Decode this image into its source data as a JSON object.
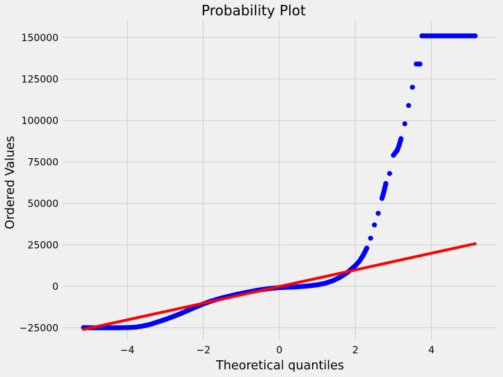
{
  "chart_data": {
    "type": "scatter",
    "title": "Probability Plot",
    "xlabel": "Theoretical quantiles",
    "ylabel": "Ordered Values",
    "xlim": [
      -5.7,
      5.7
    ],
    "ylim": [
      -32000,
      160000
    ],
    "xticks": [
      -4,
      -2,
      0,
      2,
      4
    ],
    "xtick_labels": [
      "−4",
      "−2",
      "0",
      "2",
      "4"
    ],
    "yticks": [
      -25000,
      0,
      25000,
      50000,
      75000,
      100000,
      125000,
      150000
    ],
    "ytick_labels": [
      "−25000",
      "0",
      "25000",
      "50000",
      "75000",
      "100000",
      "125000",
      "150000"
    ],
    "grid": true,
    "marker_color": "#0000ff",
    "line_color": "#ff0000",
    "background_color": "#f0f0f0",
    "series": [
      {
        "kind": "points",
        "points": [
          [
            -5.15,
            -24900
          ],
          [
            -4.9,
            -25000
          ],
          [
            -4.6,
            -25000
          ],
          [
            -4.3,
            -25000
          ],
          [
            -4.0,
            -24900
          ],
          [
            -3.8,
            -24700
          ],
          [
            -3.6,
            -24000
          ],
          [
            -3.4,
            -23000
          ],
          [
            -3.2,
            -21500
          ],
          [
            -3.0,
            -20000
          ],
          [
            -2.8,
            -18300
          ],
          [
            -2.6,
            -16500
          ],
          [
            -2.4,
            -14500
          ],
          [
            -2.2,
            -12500
          ],
          [
            -2.0,
            -10600
          ],
          [
            -1.8,
            -9000
          ],
          [
            -1.6,
            -7600
          ],
          [
            -1.4,
            -6400
          ],
          [
            -1.2,
            -5300
          ],
          [
            -1.0,
            -4300
          ],
          [
            -0.8,
            -3400
          ],
          [
            -0.6,
            -2500
          ],
          [
            -0.4,
            -1800
          ],
          [
            -0.2,
            -1200
          ],
          [
            0.0,
            -800
          ],
          [
            0.2,
            -600
          ],
          [
            0.4,
            -400
          ],
          [
            0.6,
            -100
          ],
          [
            0.8,
            300
          ],
          [
            1.0,
            900
          ],
          [
            1.2,
            1800
          ],
          [
            1.4,
            3300
          ],
          [
            1.6,
            5500
          ],
          [
            1.8,
            8500
          ],
          [
            2.0,
            12500
          ],
          [
            2.1,
            15000
          ],
          [
            2.2,
            18500
          ],
          [
            2.3,
            23000
          ],
          [
            2.4,
            29000
          ],
          [
            2.5,
            37000
          ],
          [
            2.6,
            44000
          ],
          [
            2.7,
            53000
          ],
          [
            2.75,
            57000
          ],
          [
            2.8,
            62000
          ],
          [
            2.9,
            68000
          ],
          [
            3.0,
            79000
          ],
          [
            3.1,
            82000
          ],
          [
            3.15,
            85000
          ],
          [
            3.2,
            89000
          ],
          [
            3.3,
            98000
          ],
          [
            3.4,
            109000
          ],
          [
            3.5,
            120000
          ],
          [
            3.6,
            134000
          ],
          [
            3.7,
            134000
          ],
          [
            3.75,
            151000
          ],
          [
            4.0,
            151000
          ],
          [
            4.3,
            151000
          ],
          [
            4.6,
            151000
          ],
          [
            4.9,
            151000
          ],
          [
            5.15,
            151000
          ]
        ]
      },
      {
        "kind": "fit-line",
        "points": [
          [
            -5.15,
            -26000
          ],
          [
            5.15,
            25700
          ]
        ]
      }
    ]
  }
}
